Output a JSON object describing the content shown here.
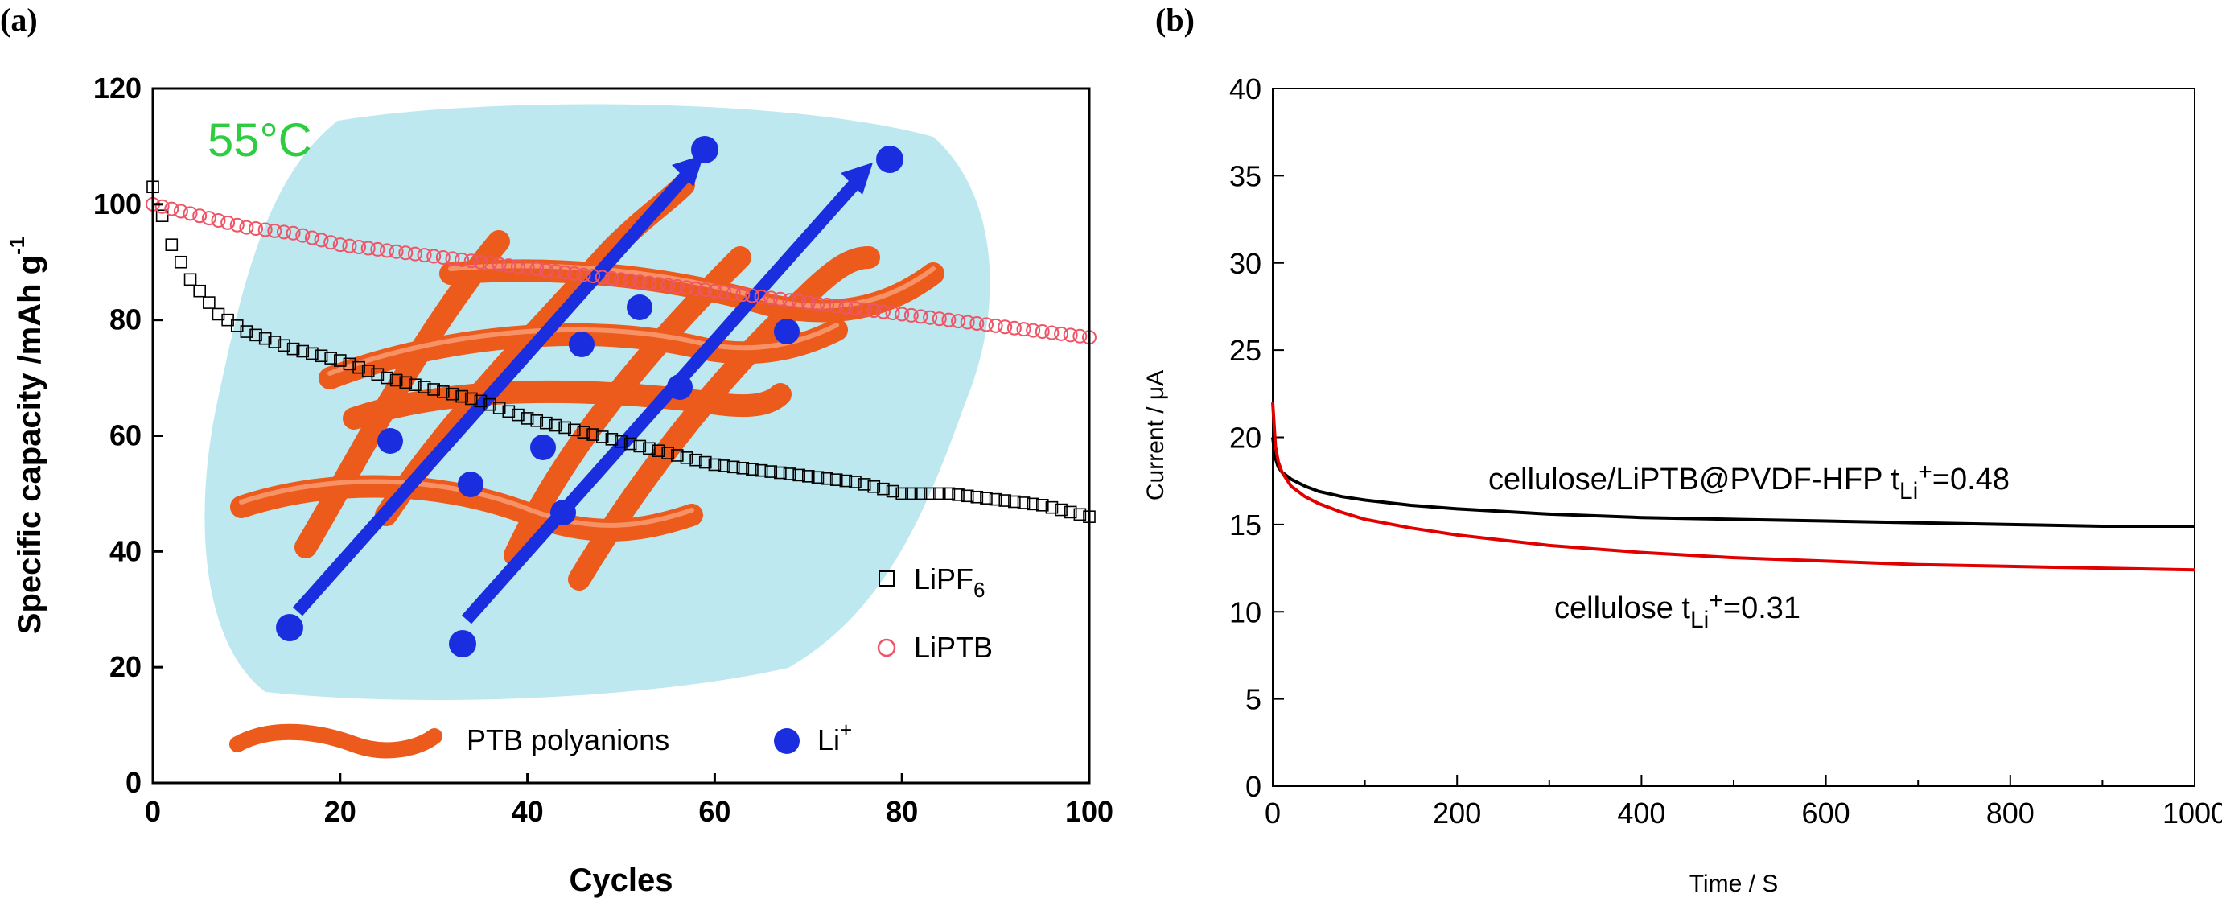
{
  "panels": {
    "a_label": "(a)",
    "b_label": "(b)"
  },
  "colors": {
    "lipf6": "#000000",
    "liptb": "#ee5566",
    "polyanion": "#ec5a1c",
    "li_ion": "#1a2ee0",
    "halo": "#bde8f0",
    "temp": "#2ecc40",
    "curve_black": "#000000",
    "curve_red": "#e00000"
  },
  "chart_data": [
    {
      "type": "scatter",
      "panel": "a",
      "xlabel": "Cycles",
      "ylabel": "Specific capacity /mAh g",
      "ylabel_sup": "-1",
      "xlim": [
        0,
        100
      ],
      "ylim": [
        0,
        120
      ],
      "xticks": [
        "0",
        "20",
        "40",
        "60",
        "80",
        "100"
      ],
      "yticks": [
        "0",
        "20",
        "40",
        "60",
        "80",
        "100",
        "120"
      ],
      "temperature_label": "55°C",
      "series": [
        {
          "name": "LiPF",
          "name_sub": "6",
          "marker": "square-open",
          "x": [
            0,
            1,
            2,
            3,
            4,
            5,
            6,
            7,
            8,
            9,
            10,
            15,
            20,
            25,
            30,
            35,
            40,
            45,
            50,
            55,
            60,
            65,
            70,
            75,
            80,
            85,
            90,
            95,
            100
          ],
          "y": [
            103,
            98,
            93,
            90,
            87,
            85,
            83,
            81,
            80,
            79,
            78,
            75,
            73,
            70,
            68,
            66,
            63,
            61,
            59,
            57,
            55,
            54,
            53,
            52,
            50,
            50,
            49,
            48,
            46
          ]
        },
        {
          "name": "LiPTB",
          "marker": "circle-open",
          "x": [
            0,
            5,
            10,
            15,
            20,
            25,
            30,
            35,
            40,
            45,
            50,
            55,
            60,
            65,
            70,
            75,
            80,
            85,
            90,
            95,
            100
          ],
          "y": [
            100,
            98,
            96,
            95,
            93,
            92,
            91,
            90,
            89,
            88,
            87,
            86,
            85,
            84,
            83,
            82,
            81,
            80,
            79,
            78,
            77
          ]
        }
      ],
      "legend_polyanion": "PTB polyanions",
      "legend_li": "Li",
      "legend_li_sup": "+"
    },
    {
      "type": "line",
      "panel": "b",
      "xlabel": "Time / S",
      "ylabel": "Current / μA",
      "xlim": [
        0,
        1000
      ],
      "ylim": [
        0,
        40
      ],
      "xticks": [
        "0",
        "200",
        "400",
        "600",
        "800",
        "1000"
      ],
      "yticks": [
        "0",
        "5",
        "10",
        "15",
        "20",
        "25",
        "30",
        "35",
        "40"
      ],
      "series": [
        {
          "label_main": "cellulose/LiPTB@PVDF-HFP  t",
          "label_sub": "Li",
          "label_sup": "+",
          "label_val": "=0.48",
          "x": [
            0,
            3,
            6,
            10,
            20,
            35,
            50,
            75,
            100,
            150,
            200,
            300,
            400,
            500,
            600,
            700,
            800,
            900,
            1000
          ],
          "y": [
            20,
            18.8,
            18.3,
            18.0,
            17.6,
            17.2,
            16.9,
            16.6,
            16.4,
            16.1,
            15.9,
            15.6,
            15.4,
            15.3,
            15.2,
            15.1,
            15.0,
            14.9,
            14.9
          ]
        },
        {
          "label_main": "cellulose  t",
          "label_sub": "Li",
          "label_sup": "+",
          "label_val": "=0.31",
          "x": [
            0,
            3,
            6,
            10,
            20,
            35,
            50,
            75,
            100,
            150,
            200,
            300,
            400,
            500,
            600,
            700,
            800,
            900,
            1000
          ],
          "y": [
            22,
            19.5,
            18.6,
            18.0,
            17.2,
            16.6,
            16.2,
            15.7,
            15.3,
            14.8,
            14.4,
            13.8,
            13.4,
            13.1,
            12.9,
            12.7,
            12.6,
            12.5,
            12.4
          ]
        }
      ]
    }
  ]
}
